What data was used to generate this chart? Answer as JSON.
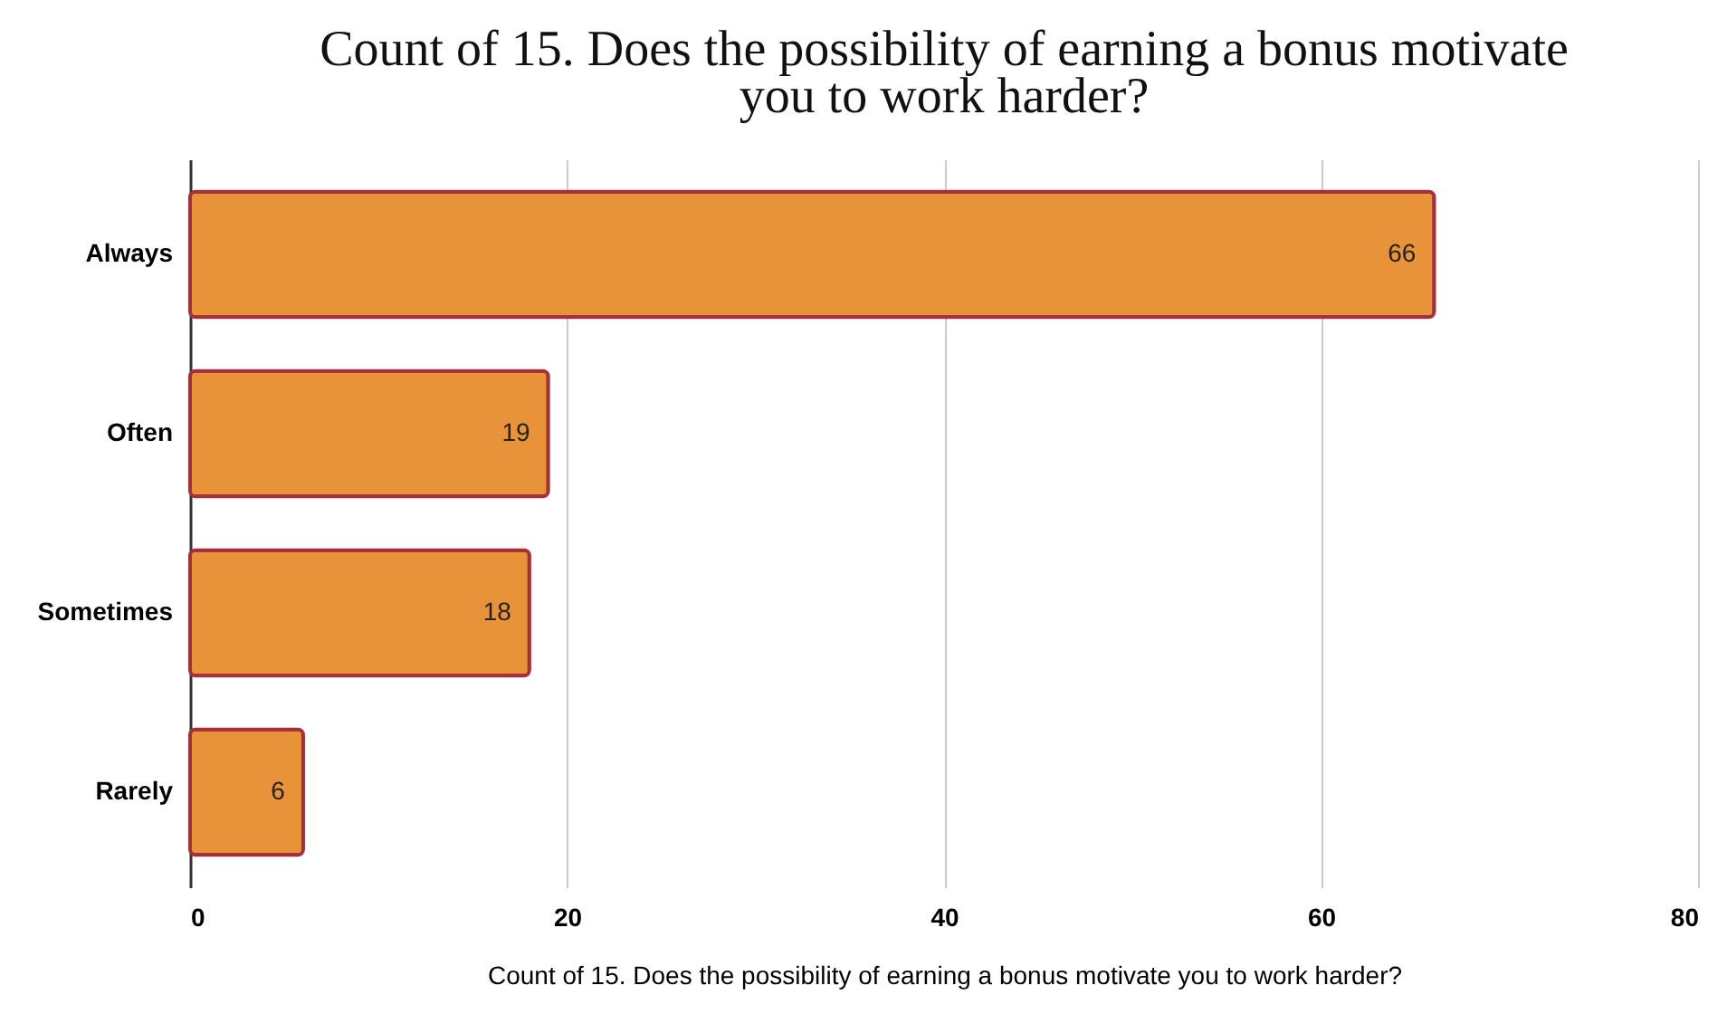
{
  "chart_data": {
    "type": "bar",
    "orientation": "horizontal",
    "title": "Count of 15. Does the possibility of earning a bonus motivate you to work harder?",
    "xlabel": "Count of 15. Does the possibility of earning a bonus motivate you to work harder?",
    "categories": [
      "Always",
      "Often",
      "Sometimes",
      "Rarely"
    ],
    "values": [
      66,
      19,
      18,
      6
    ],
    "color": "#e8923a",
    "xlim": [
      0,
      80
    ],
    "xticks": [
      0,
      20,
      40,
      60,
      80
    ],
    "grid": "x",
    "data_labels": true
  }
}
